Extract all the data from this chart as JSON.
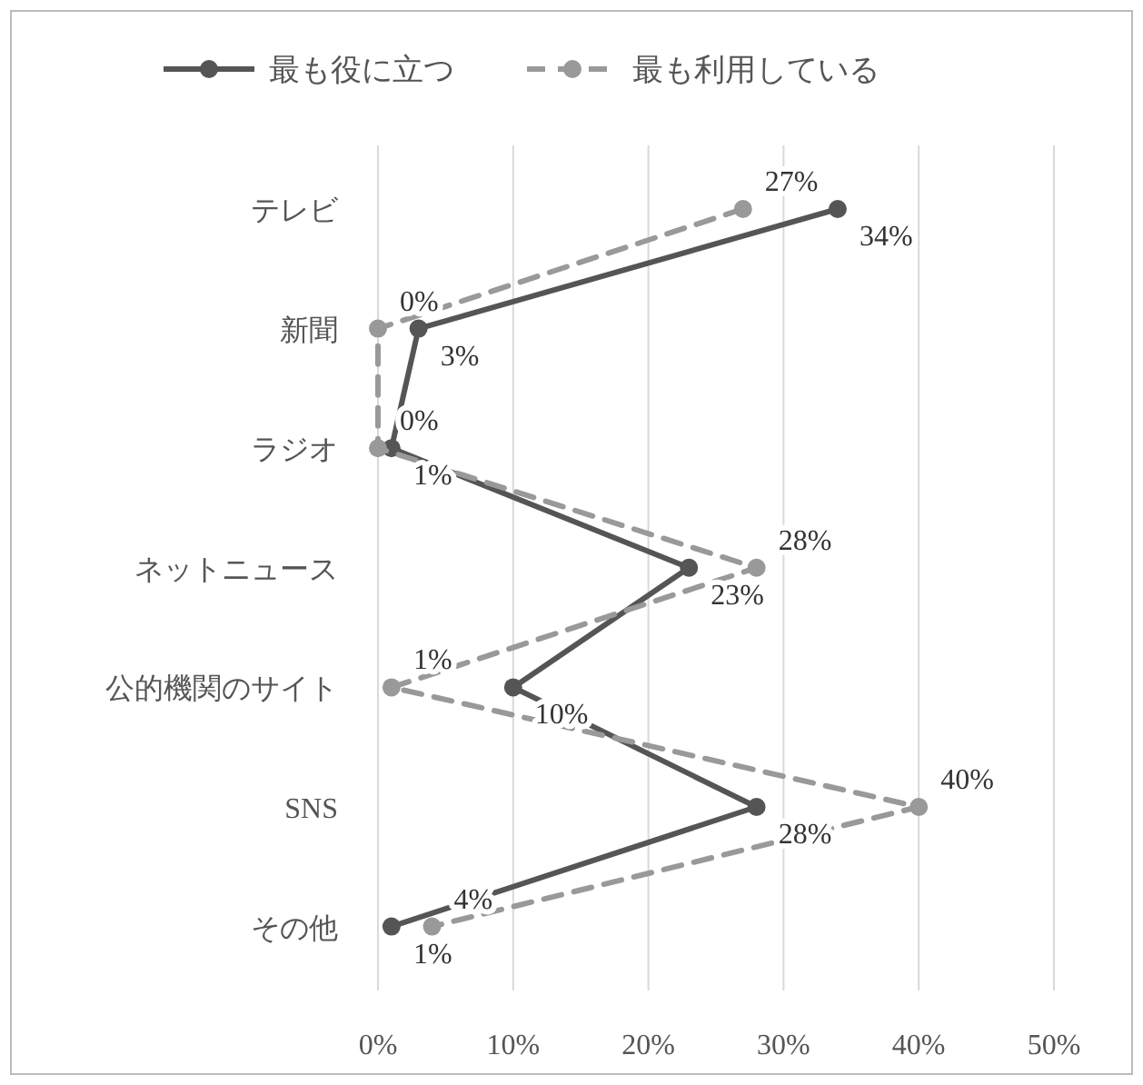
{
  "chart_data": {
    "type": "line",
    "orientation": "horizontal",
    "categories": [
      "テレビ",
      "新聞",
      "ラジオ",
      "ネットニュース",
      "公的機関のサイト",
      "SNS",
      "その他"
    ],
    "series": [
      {
        "name": "最も役に立つ",
        "color": "#555555",
        "values": [
          34,
          3,
          1,
          23,
          10,
          28,
          1
        ],
        "value_labels": [
          "34%",
          "3%",
          "1%",
          "23%",
          "10%",
          "28%",
          "1%"
        ],
        "line_style": "solid"
      },
      {
        "name": "最も利用している",
        "color": "#999999",
        "values": [
          27,
          0,
          0,
          28,
          1,
          40,
          4
        ],
        "value_labels": [
          "27%",
          "0%",
          "0%",
          "28%",
          "1%",
          "40%",
          "4%"
        ],
        "line_style": "dashed"
      }
    ],
    "xlim": [
      0,
      50
    ],
    "xticks": [
      {
        "value": 0,
        "label": "0%"
      },
      {
        "value": 10,
        "label": "10%"
      },
      {
        "value": 20,
        "label": "20%"
      },
      {
        "value": 30,
        "label": "30%"
      },
      {
        "value": 40,
        "label": "40%"
      },
      {
        "value": 50,
        "label": "50%"
      }
    ],
    "grid": "x",
    "legend": "top",
    "marker": "circle"
  }
}
